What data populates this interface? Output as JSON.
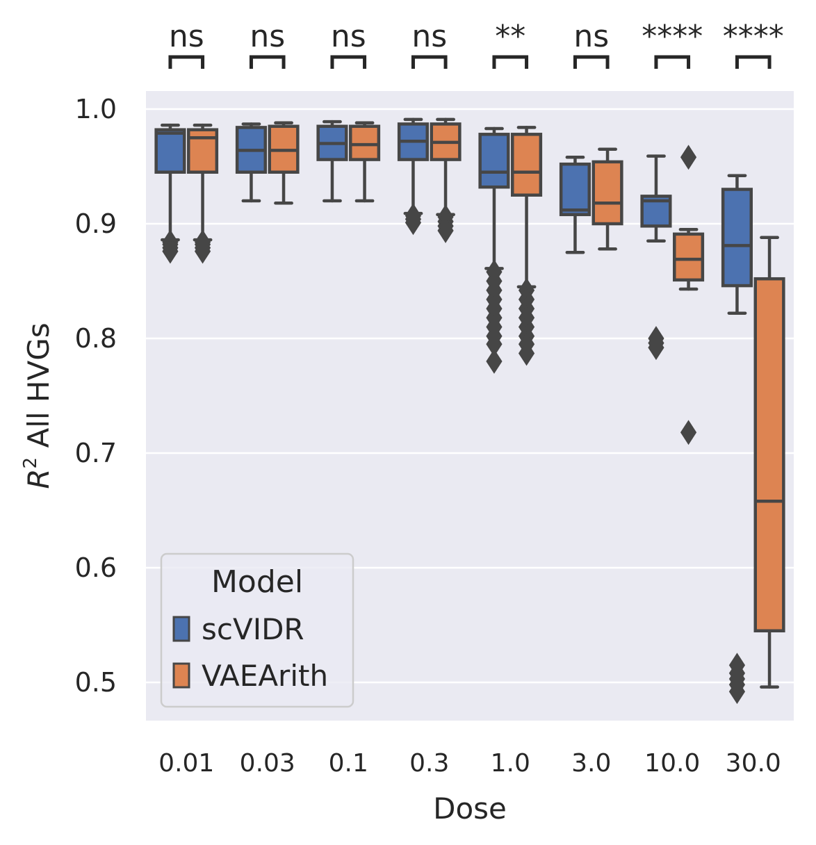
{
  "chart_data": {
    "type": "boxplot",
    "title": "",
    "xlabel": "Dose",
    "ylabel_main": "R",
    "ylabel_sup": "2",
    "ylabel_rest": " All HVGs",
    "categories": [
      "0.01",
      "0.03",
      "0.1",
      "0.3",
      "1.0",
      "3.0",
      "10.0",
      "30.0"
    ],
    "yticks": [
      "0.5",
      "0.6",
      "0.7",
      "0.8",
      "0.9",
      "1.0"
    ],
    "ylim": [
      0.465,
      1.015
    ],
    "grid": true,
    "legend": {
      "title": "Model",
      "position": "lower-left",
      "entries": [
        "scVIDR",
        "VAEArith"
      ]
    },
    "colors": {
      "scVIDR": "#4c72b0",
      "VAEArith": "#dd8452",
      "background": "#eaeaf2",
      "line": "#464646"
    },
    "significance": [
      "ns",
      "ns",
      "ns",
      "ns",
      "**",
      "ns",
      "****",
      "****"
    ],
    "series": [
      {
        "name": "scVIDR",
        "boxes": [
          {
            "whislo": 0.886,
            "q1": 0.945,
            "med": 0.979,
            "q3": 0.982,
            "whishi": 0.986,
            "fliers": [
              0.884,
              0.882,
              0.879,
              0.876
            ]
          },
          {
            "whislo": 0.92,
            "q1": 0.945,
            "med": 0.964,
            "q3": 0.984,
            "whishi": 0.987,
            "fliers": []
          },
          {
            "whislo": 0.92,
            "q1": 0.956,
            "med": 0.97,
            "q3": 0.985,
            "whishi": 0.989,
            "fliers": []
          },
          {
            "whislo": 0.909,
            "q1": 0.956,
            "med": 0.972,
            "q3": 0.987,
            "whishi": 0.991,
            "fliers": [
              0.907,
              0.904,
              0.901
            ]
          },
          {
            "whislo": 0.861,
            "q1": 0.932,
            "med": 0.945,
            "q3": 0.978,
            "whishi": 0.983,
            "fliers": [
              0.858,
              0.85,
              0.842,
              0.834,
              0.826,
              0.818,
              0.81,
              0.802,
              0.795,
              0.78
            ]
          },
          {
            "whislo": 0.875,
            "q1": 0.908,
            "med": 0.912,
            "q3": 0.952,
            "whishi": 0.958,
            "fliers": []
          },
          {
            "whislo": 0.885,
            "q1": 0.898,
            "med": 0.92,
            "q3": 0.924,
            "whishi": 0.959,
            "fliers": [
              0.8,
              0.796,
              0.792
            ]
          },
          {
            "whislo": 0.822,
            "q1": 0.846,
            "med": 0.881,
            "q3": 0.93,
            "whishi": 0.942,
            "fliers": [
              0.515,
              0.508,
              0.503,
              0.498,
              0.492
            ]
          }
        ]
      },
      {
        "name": "VAEArith",
        "boxes": [
          {
            "whislo": 0.886,
            "q1": 0.945,
            "med": 0.975,
            "q3": 0.982,
            "whishi": 0.986,
            "fliers": [
              0.884,
              0.882,
              0.879,
              0.876
            ]
          },
          {
            "whislo": 0.918,
            "q1": 0.945,
            "med": 0.964,
            "q3": 0.985,
            "whishi": 0.988,
            "fliers": []
          },
          {
            "whislo": 0.92,
            "q1": 0.956,
            "med": 0.969,
            "q3": 0.985,
            "whishi": 0.988,
            "fliers": []
          },
          {
            "whislo": 0.908,
            "q1": 0.956,
            "med": 0.971,
            "q3": 0.987,
            "whishi": 0.991,
            "fliers": [
              0.906,
              0.902,
              0.898,
              0.894
            ]
          },
          {
            "whislo": 0.845,
            "q1": 0.925,
            "med": 0.945,
            "q3": 0.978,
            "whishi": 0.984,
            "fliers": [
              0.842,
              0.834,
              0.826,
              0.818,
              0.81,
              0.802,
              0.795,
              0.787
            ]
          },
          {
            "whislo": 0.878,
            "q1": 0.9,
            "med": 0.918,
            "q3": 0.954,
            "whishi": 0.965,
            "fliers": []
          },
          {
            "whislo": 0.843,
            "q1": 0.851,
            "med": 0.869,
            "q3": 0.891,
            "whishi": 0.895,
            "fliers": [
              0.958,
              0.718
            ]
          },
          {
            "whislo": 0.496,
            "q1": 0.545,
            "med": 0.658,
            "q3": 0.852,
            "whishi": 0.888,
            "fliers": []
          }
        ]
      }
    ]
  }
}
